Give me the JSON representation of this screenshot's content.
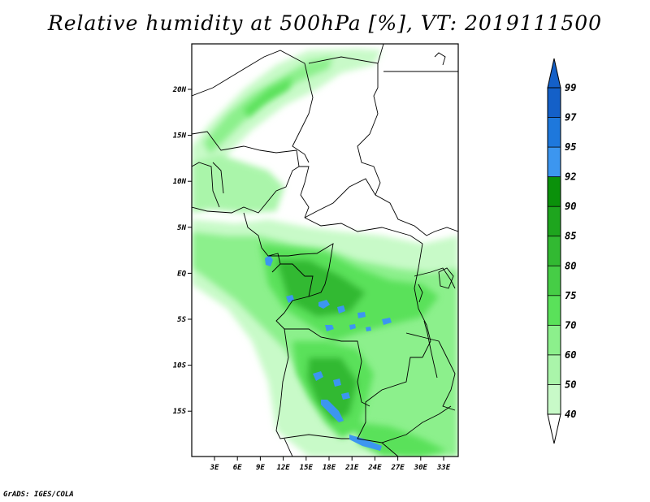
{
  "title": "Relative humidity at 500hPa [%], VT: 2019111500",
  "credit": "GrADS: IGES/COLA",
  "map": {
    "lat_labels": [
      "20N",
      "15N",
      "10N",
      "5N",
      "EQ",
      "5S",
      "10S",
      "15S"
    ],
    "lon_labels": [
      "3E",
      "6E",
      "9E",
      "12E",
      "15E",
      "18E",
      "21E",
      "24E",
      "27E",
      "30E",
      "33E"
    ]
  },
  "colorbar": {
    "labels": [
      "99",
      "97",
      "95",
      "92",
      "90",
      "85",
      "80",
      "75",
      "70",
      "60",
      "50",
      "40"
    ],
    "colors": [
      "#1460c8",
      "#1e78dc",
      "#3c96f0",
      "#0a910a",
      "#1ea51e",
      "#32b932",
      "#46cd46",
      "#5ae15a",
      "#8cf08c",
      "#aaf5aa",
      "#c8fac8",
      "#e6fde6"
    ]
  }
}
